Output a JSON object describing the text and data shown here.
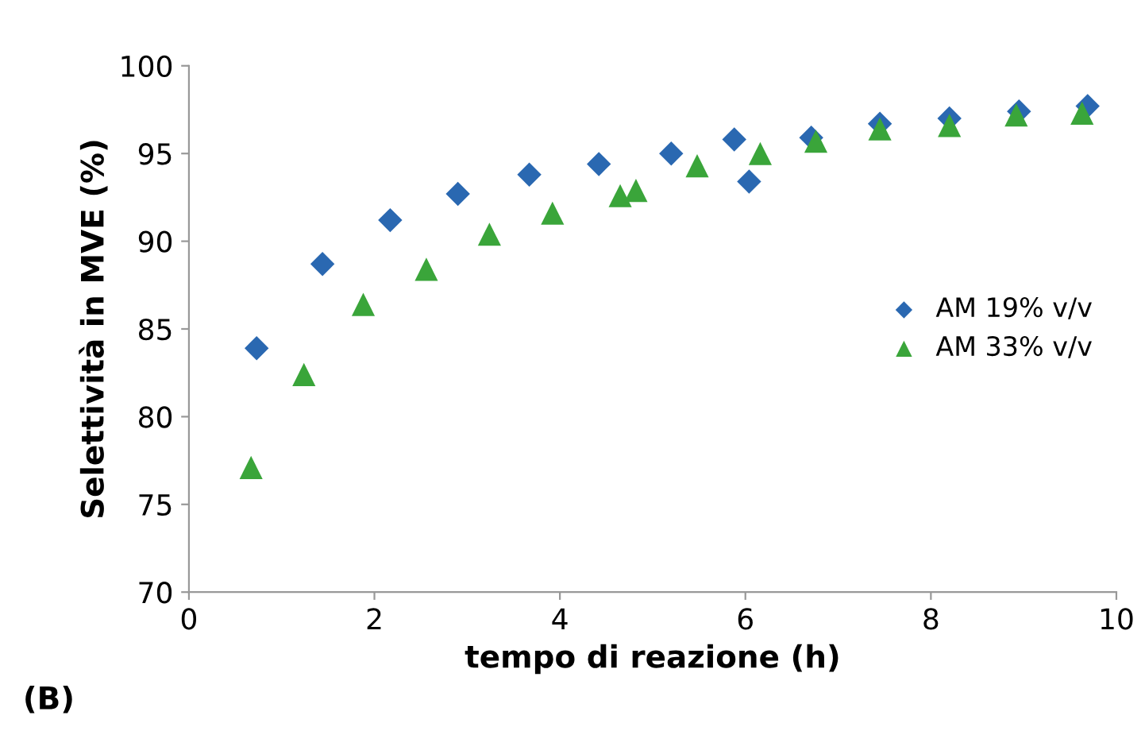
{
  "chart_data": {
    "type": "scatter",
    "xlabel": "tempo di reazione (h)",
    "ylabel": "Selettività in MVE (%)",
    "annotations": [
      "(B)"
    ],
    "series": [
      {
        "name": "AM 19% v/v",
        "color": "#2a68b1",
        "marker": "diamond",
        "x": [
          0.73,
          1.44,
          2.17,
          2.9,
          3.67,
          4.42,
          5.2,
          5.88,
          6.04,
          6.71,
          7.45,
          8.2,
          8.95,
          9.69
        ],
        "values": [
          83.9,
          88.7,
          91.2,
          92.7,
          93.8,
          94.4,
          95.0,
          95.8,
          93.4,
          95.9,
          96.7,
          97.0,
          97.4,
          97.7
        ]
      },
      {
        "name": "AM 33% v/v",
        "color": "#3aa53a",
        "marker": "triangle",
        "x": [
          0.67,
          1.24,
          1.88,
          2.56,
          3.24,
          3.92,
          4.65,
          4.82,
          5.48,
          6.16,
          6.76,
          7.45,
          8.2,
          8.92,
          9.63
        ],
        "values": [
          77.1,
          82.4,
          86.4,
          88.4,
          90.4,
          91.6,
          92.6,
          92.9,
          94.3,
          95.0,
          95.7,
          96.4,
          96.6,
          97.2,
          97.3
        ]
      }
    ],
    "xlim": [
      0,
      10
    ],
    "xticks": [
      0,
      2,
      4,
      6,
      8,
      10
    ],
    "ylim": [
      70,
      100
    ],
    "yticks": [
      70,
      75,
      80,
      85,
      90,
      95,
      100
    ],
    "grid": false,
    "legend": "right"
  }
}
